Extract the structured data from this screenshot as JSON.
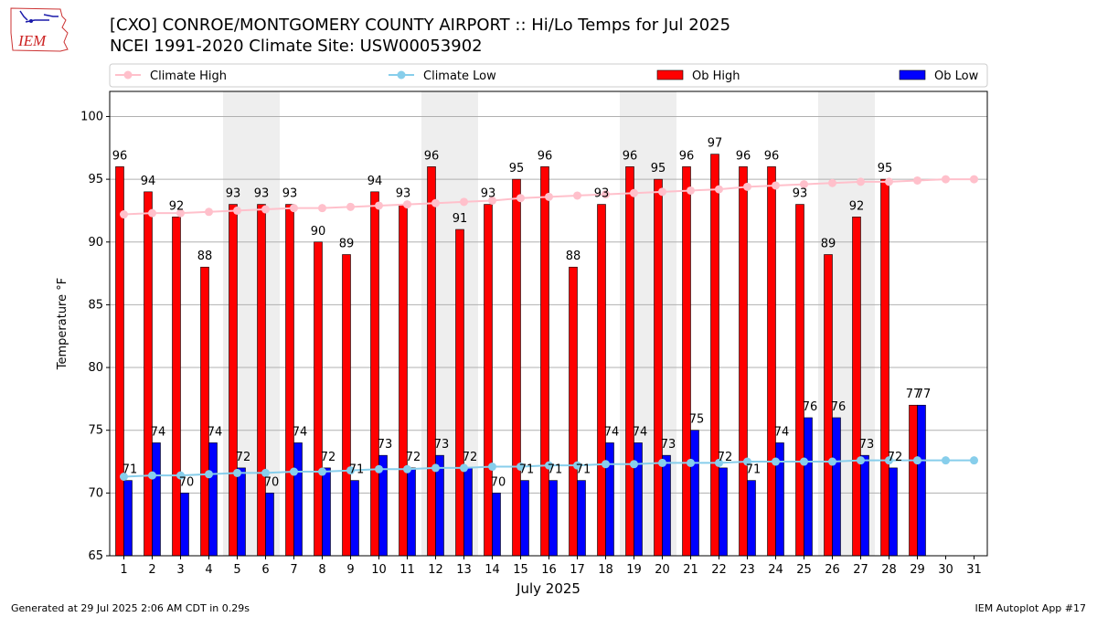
{
  "header": {
    "title": "[CXO] CONROE/MONTGOMERY COUNTY AIRPORT :: Hi/Lo Temps for Jul 2025",
    "subtitle": "NCEI 1991-2020 Climate Site: USW00053902",
    "logo_text": "IEM"
  },
  "footer": {
    "left": "Generated at 29 Jul 2025 2:06 AM CDT in 0.29s",
    "right": "IEM Autoplot App #17"
  },
  "colors": {
    "ob_high": "#ff0000",
    "ob_low": "#0000ff",
    "climate_high": "#ffc0cb",
    "climate_low": "#87ceeb",
    "weekend_shade": "#eeeeee",
    "grid": "#b0b0b0"
  },
  "chart_data": {
    "type": "bar",
    "xlabel": "July 2025",
    "ylabel": "Temperature °F",
    "ylim": [
      65,
      102
    ],
    "yticks": [
      65,
      70,
      75,
      80,
      85,
      90,
      95,
      100
    ],
    "grid": "horizontal",
    "legend_position": "top",
    "categories": [
      1,
      2,
      3,
      4,
      5,
      6,
      7,
      8,
      9,
      10,
      11,
      12,
      13,
      14,
      15,
      16,
      17,
      18,
      19,
      20,
      21,
      22,
      23,
      24,
      25,
      26,
      27,
      28,
      29,
      30,
      31
    ],
    "weekend_spans": [
      [
        5,
        6
      ],
      [
        12,
        13
      ],
      [
        19,
        20
      ],
      [
        26,
        27
      ]
    ],
    "series": [
      {
        "name": "Climate High",
        "kind": "line",
        "values": [
          92.2,
          92.3,
          92.3,
          92.4,
          92.5,
          92.6,
          92.7,
          92.7,
          92.8,
          92.9,
          93.0,
          93.1,
          93.2,
          93.3,
          93.5,
          93.6,
          93.7,
          93.8,
          93.9,
          94.0,
          94.1,
          94.2,
          94.4,
          94.5,
          94.6,
          94.7,
          94.8,
          94.8,
          94.9,
          95.0,
          95.0
        ]
      },
      {
        "name": "Climate Low",
        "kind": "line",
        "values": [
          71.3,
          71.4,
          71.4,
          71.5,
          71.6,
          71.6,
          71.7,
          71.7,
          71.8,
          71.9,
          71.9,
          72.0,
          72.0,
          72.1,
          72.1,
          72.2,
          72.2,
          72.3,
          72.3,
          72.4,
          72.4,
          72.4,
          72.5,
          72.5,
          72.5,
          72.5,
          72.6,
          72.6,
          72.6,
          72.6,
          72.6
        ]
      },
      {
        "name": "Ob High",
        "kind": "bar",
        "values": [
          96,
          94,
          92,
          88,
          93,
          93,
          93,
          90,
          89,
          94,
          93,
          96,
          91,
          93,
          95,
          96,
          88,
          93,
          96,
          95,
          96,
          97,
          96,
          96,
          93,
          89,
          92,
          95,
          77,
          null,
          null
        ]
      },
      {
        "name": "Ob Low",
        "kind": "bar",
        "values": [
          71,
          74,
          70,
          74,
          72,
          70,
          74,
          72,
          71,
          73,
          72,
          73,
          72,
          70,
          71,
          71,
          71,
          74,
          74,
          73,
          75,
          72,
          71,
          74,
          76,
          76,
          73,
          72,
          77,
          null,
          null
        ]
      }
    ]
  }
}
